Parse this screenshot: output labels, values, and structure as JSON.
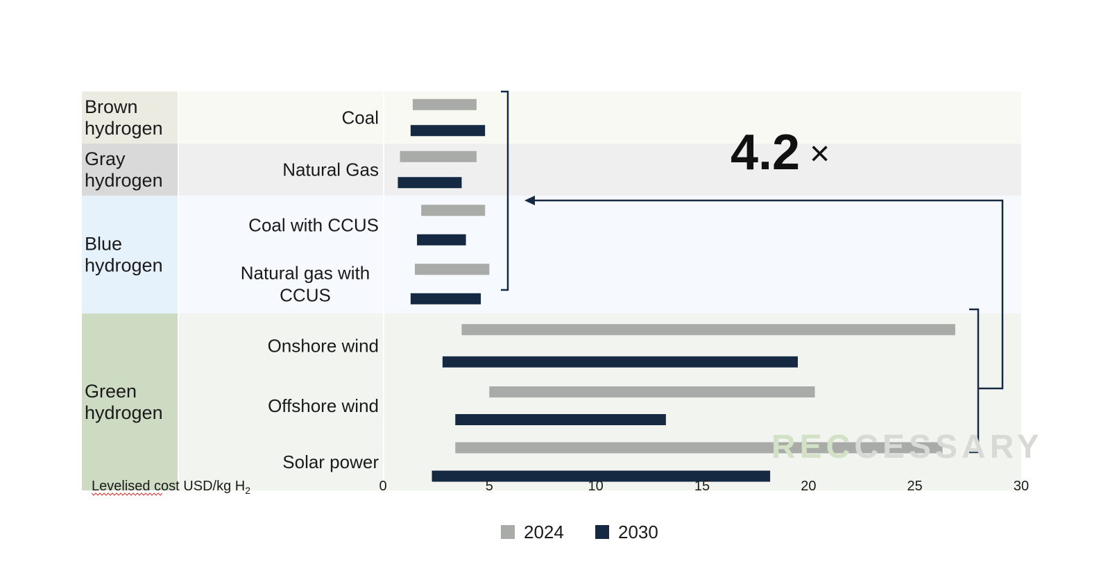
{
  "chart_data": {
    "type": "bar",
    "subtype": "floating-range-horizontal",
    "xlabel": "Levelised cost USD/kg H",
    "xlabel_subscript": "2",
    "xlim": [
      0,
      30
    ],
    "x_ticks": [
      0,
      5,
      10,
      15,
      20,
      25,
      30
    ],
    "legend": {
      "position": "bottom-center",
      "items": [
        {
          "name": "2024",
          "color": "#a8aba8"
        },
        {
          "name": "2030",
          "color": "#152a42"
        }
      ]
    },
    "groups": [
      {
        "label_lines": [
          "Brown",
          "hydrogen"
        ],
        "color": "#ecebe1",
        "bg": "#f9f9f3",
        "subs": [
          "coal"
        ]
      },
      {
        "label_lines": [
          "Gray",
          "hydrogen"
        ],
        "color": "#d9d9d9",
        "bg": "#efefef",
        "subs": [
          "natgas"
        ]
      },
      {
        "label_lines": [
          "Blue",
          "hydrogen"
        ],
        "color": "#e6f2fb",
        "bg": "#f6f9fd",
        "subs": [
          "coal_ccus",
          "gas_ccus"
        ]
      },
      {
        "label_lines": [
          "Green",
          "hydrogen"
        ],
        "color": "#cddbc3",
        "bg": "#f2f5ef",
        "subs": [
          "onshore",
          "offshore",
          "solar"
        ]
      }
    ],
    "categories": [
      {
        "key": "coal",
        "label_lines": [
          "Coal"
        ]
      },
      {
        "key": "natgas",
        "label_lines": [
          "Natural Gas"
        ]
      },
      {
        "key": "coal_ccus",
        "label_lines": [
          "Coal with CCUS"
        ]
      },
      {
        "key": "gas_ccus",
        "label_lines": [
          "Natural gas with",
          "CCUS"
        ]
      },
      {
        "key": "onshore",
        "label_lines": [
          "Onshore wind"
        ]
      },
      {
        "key": "offshore",
        "label_lines": [
          "Offshore wind"
        ]
      },
      {
        "key": "solar",
        "label_lines": [
          "Solar power"
        ]
      }
    ],
    "series": [
      {
        "name": "2024",
        "ranges": [
          [
            1.4,
            4.4
          ],
          [
            0.8,
            4.4
          ],
          [
            1.8,
            4.8
          ],
          [
            1.5,
            5.0
          ],
          [
            3.7,
            26.9
          ],
          [
            5.0,
            20.3
          ],
          [
            3.4,
            26.3
          ]
        ]
      },
      {
        "name": "2030",
        "ranges": [
          [
            1.3,
            4.8
          ],
          [
            0.7,
            3.7
          ],
          [
            1.6,
            3.9
          ],
          [
            1.3,
            4.6
          ],
          [
            2.8,
            19.5
          ],
          [
            3.4,
            13.3
          ],
          [
            2.3,
            18.2
          ]
        ]
      }
    ],
    "annotation": {
      "ratio": "4.2",
      "suffix": "×"
    }
  },
  "watermark": {
    "part1": "REC",
    "part2": "CESSARY"
  }
}
